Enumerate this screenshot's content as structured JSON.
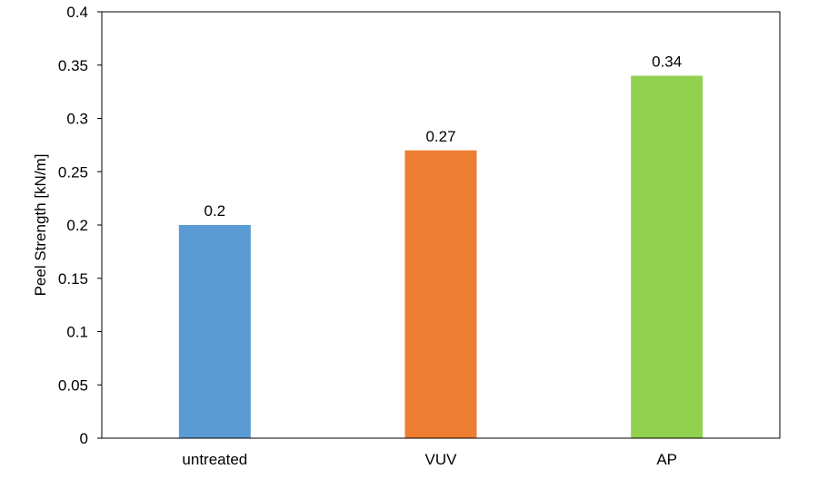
{
  "chart_data": {
    "type": "bar",
    "title": "",
    "xlabel": "",
    "ylabel": "Peel Strength [kN/m]",
    "categories": [
      "untreated",
      "VUV",
      "AP"
    ],
    "values": [
      0.2,
      0.27,
      0.34
    ],
    "data_labels": [
      "0.2",
      "0.27",
      "0.34"
    ],
    "colors": [
      "#5B9BD5",
      "#ED7D31",
      "#92D050"
    ],
    "ylim": [
      0,
      0.4
    ],
    "yticks": [
      0,
      0.05,
      0.1,
      0.15,
      0.2,
      0.25,
      0.3,
      0.35,
      0.4
    ],
    "ytick_labels": [
      "0",
      "0.05",
      "0.1",
      "0.15",
      "0.2",
      "0.25",
      "0.3",
      "0.35",
      "0.4"
    ],
    "grid": false,
    "legend": "none"
  }
}
